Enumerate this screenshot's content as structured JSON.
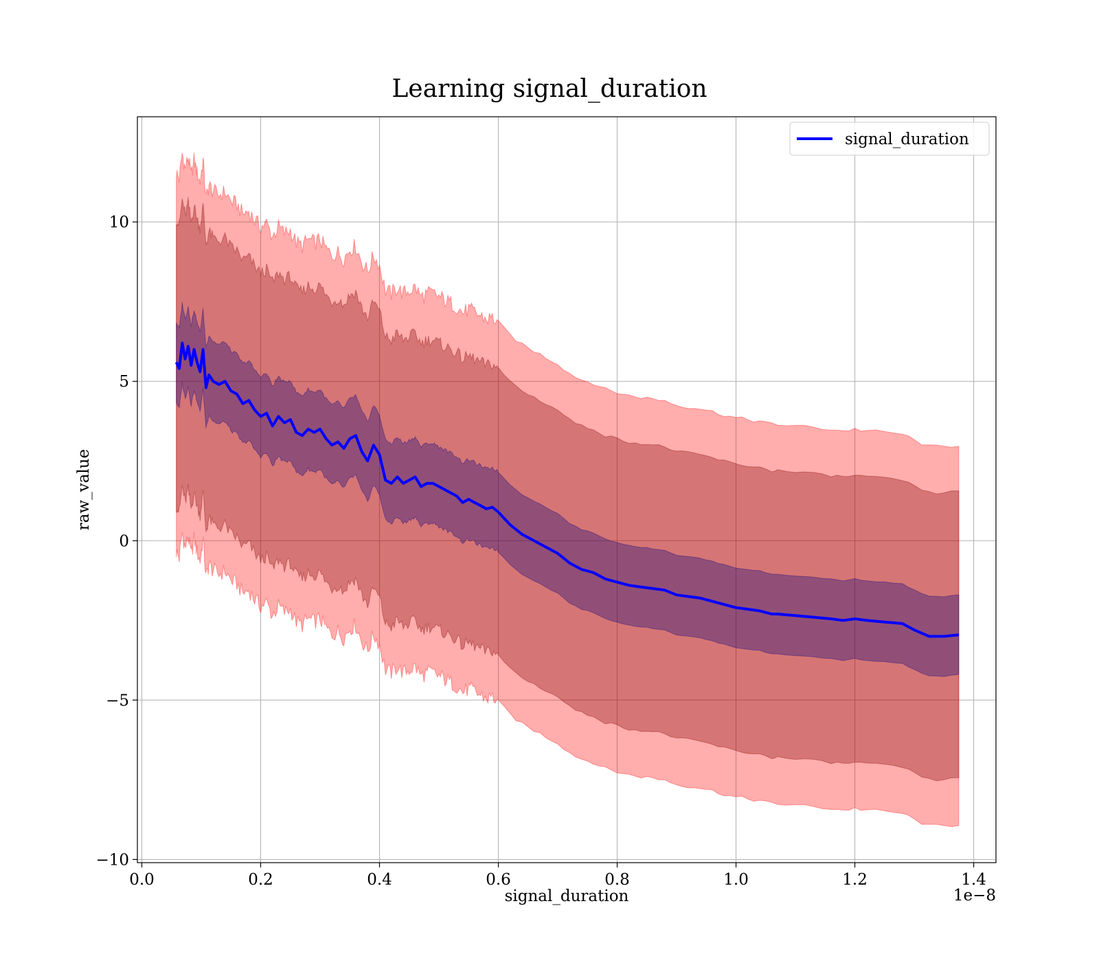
{
  "chart_data": {
    "type": "line",
    "title": "Learning signal_duration",
    "xlabel": "signal_duration",
    "ylabel": "raw_value",
    "x_offset_text": "1e−8",
    "xlim": [
      -0.0075,
      1.4375
    ],
    "ylim": [
      -10.1,
      13.3
    ],
    "x_ticks": [
      0.0,
      0.2,
      0.4,
      0.6,
      0.8,
      1.0,
      1.2,
      1.4
    ],
    "x_tick_labels": [
      "0.0",
      "0.2",
      "0.4",
      "0.6",
      "0.8",
      "1.0",
      "1.2",
      "1.4"
    ],
    "y_ticks": [
      -10,
      -5,
      0,
      5,
      10
    ],
    "y_tick_labels": [
      "−10",
      "−5",
      "0",
      "5",
      "10"
    ],
    "grid": true,
    "legend": {
      "position": "top-right",
      "entries": [
        "signal_duration"
      ]
    },
    "series": [
      {
        "name": "signal_duration",
        "color": "#0000ff",
        "x": [
          0.058,
          0.063,
          0.068,
          0.073,
          0.078,
          0.083,
          0.088,
          0.093,
          0.098,
          0.103,
          0.108,
          0.113,
          0.12,
          0.13,
          0.14,
          0.15,
          0.16,
          0.17,
          0.18,
          0.19,
          0.2,
          0.21,
          0.22,
          0.23,
          0.24,
          0.25,
          0.26,
          0.27,
          0.28,
          0.29,
          0.3,
          0.31,
          0.32,
          0.33,
          0.34,
          0.35,
          0.36,
          0.37,
          0.38,
          0.39,
          0.4,
          0.41,
          0.42,
          0.43,
          0.44,
          0.45,
          0.46,
          0.47,
          0.48,
          0.49,
          0.5,
          0.51,
          0.52,
          0.53,
          0.54,
          0.55,
          0.56,
          0.57,
          0.58,
          0.59,
          0.6,
          0.62,
          0.64,
          0.66,
          0.68,
          0.7,
          0.72,
          0.74,
          0.76,
          0.78,
          0.8,
          0.82,
          0.84,
          0.86,
          0.88,
          0.9,
          0.92,
          0.94,
          0.96,
          0.98,
          1.0,
          1.02,
          1.04,
          1.06,
          1.07,
          1.1,
          1.13,
          1.16,
          1.18,
          1.2,
          1.22,
          1.25,
          1.28,
          1.3,
          1.325,
          1.35,
          1.375
        ],
        "y": [
          5.6,
          5.4,
          6.2,
          5.7,
          6.1,
          5.5,
          6.0,
          5.6,
          5.3,
          6.0,
          4.8,
          5.2,
          5.0,
          4.9,
          5.0,
          4.7,
          4.6,
          4.3,
          4.4,
          4.1,
          3.9,
          4.0,
          3.6,
          3.9,
          3.7,
          3.8,
          3.4,
          3.3,
          3.5,
          3.4,
          3.5,
          3.2,
          3.0,
          3.1,
          2.9,
          3.2,
          3.3,
          2.8,
          2.5,
          3.0,
          2.7,
          1.9,
          1.8,
          2.0,
          1.8,
          1.9,
          2.0,
          1.7,
          1.8,
          1.8,
          1.7,
          1.6,
          1.5,
          1.4,
          1.2,
          1.3,
          1.2,
          1.1,
          1.0,
          1.05,
          0.9,
          0.5,
          0.2,
          0.0,
          -0.2,
          -0.4,
          -0.7,
          -0.9,
          -1.0,
          -1.2,
          -1.3,
          -1.4,
          -1.45,
          -1.5,
          -1.55,
          -1.7,
          -1.75,
          -1.8,
          -1.9,
          -2.0,
          -2.1,
          -2.15,
          -2.2,
          -2.3,
          -2.3,
          -2.35,
          -2.4,
          -2.45,
          -2.5,
          -2.45,
          -2.5,
          -2.55,
          -2.6,
          -2.8,
          -3.0,
          -3.0,
          -2.95
        ]
      }
    ],
    "bands": [
      {
        "name": "outer",
        "color": "#ff0000",
        "opacity": 0.32,
        "offset": 5.95
      },
      {
        "name": "middle",
        "color": "#800000",
        "opacity": 0.32,
        "offset": 4.5
      },
      {
        "name": "inner",
        "color": "#000080",
        "opacity": 0.32,
        "offset": 1.25
      }
    ]
  },
  "colors": {
    "line": "#0000ff",
    "grid": "#b0b0b0",
    "axes": "#000000"
  }
}
